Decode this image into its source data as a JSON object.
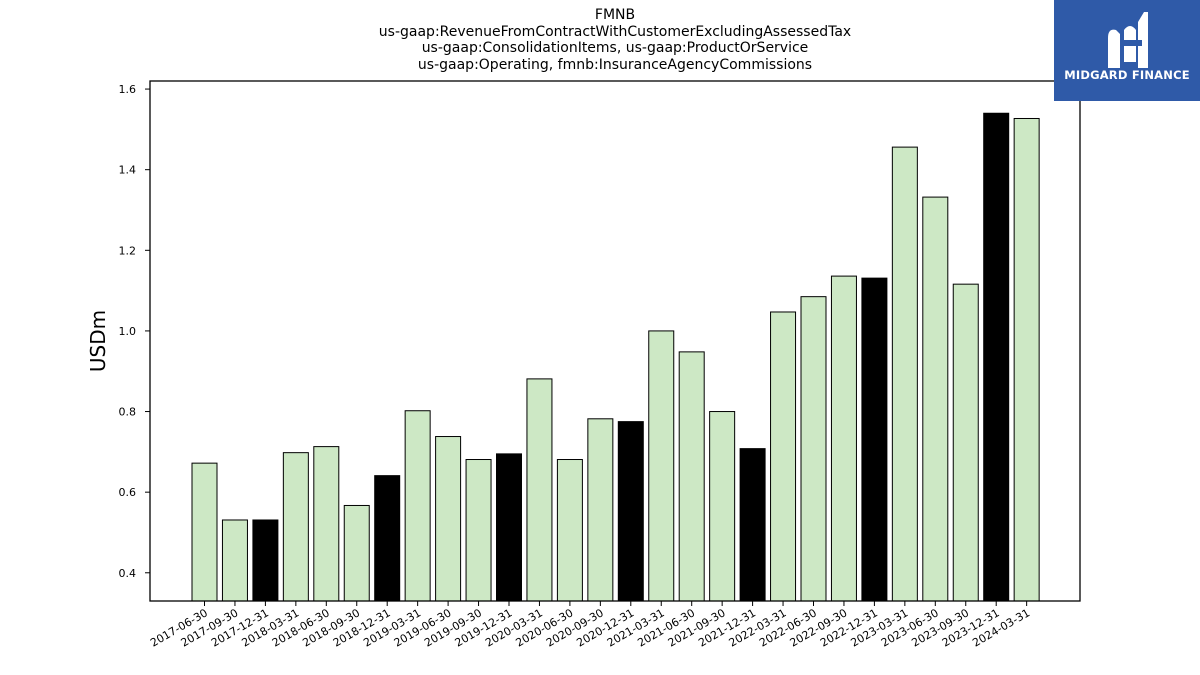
{
  "title_lines": [
    "FMNB",
    "us-gaap:RevenueFromContractWithCustomerExcludingAssessedTax",
    "us-gaap:ConsolidationItems, us-gaap:ProductOrService",
    "us-gaap:Operating, fmnb:InsuranceAgencyCommissions"
  ],
  "logo": {
    "text": "MIDGARD FINANCE",
    "icon": "midgard-m-logo-icon",
    "background": "#2f5aa8"
  },
  "colors": {
    "bar_light": "#cde8c5",
    "bar_dark": "#000000",
    "edge": "#000000"
  },
  "chart_data": {
    "type": "bar",
    "title": "FMNB",
    "xlabel": "",
    "ylabel": "USDm",
    "ylim": [
      0.33,
      1.62
    ],
    "yticks": [
      0.4,
      0.6,
      0.8,
      1.0,
      1.2,
      1.4,
      1.6
    ],
    "ytick_labels": [
      "0.4",
      "0.6",
      "0.8",
      "1.0",
      "1.2",
      "1.4",
      "1.6"
    ],
    "grid": false,
    "categories": [
      "2017-06-30",
      "2017-09-30",
      "2017-12-31",
      "2018-03-31",
      "2018-06-30",
      "2018-09-30",
      "2018-12-31",
      "2019-03-31",
      "2019-06-30",
      "2019-09-30",
      "2019-12-31",
      "2020-03-31",
      "2020-06-30",
      "2020-09-30",
      "2020-12-31",
      "2021-03-31",
      "2021-06-30",
      "2021-09-30",
      "2021-12-31",
      "2022-03-31",
      "2022-06-30",
      "2022-09-30",
      "2022-12-31",
      "2023-03-31",
      "2023-06-30",
      "2023-09-30",
      "2023-12-31",
      "2024-03-31"
    ],
    "values": [
      0.672,
      0.531,
      0.531,
      0.698,
      0.713,
      0.567,
      0.641,
      0.802,
      0.738,
      0.681,
      0.695,
      0.881,
      0.681,
      0.782,
      0.775,
      1.0,
      0.948,
      0.8,
      0.708,
      1.047,
      1.085,
      1.136,
      1.131,
      1.456,
      1.332,
      1.116,
      1.54,
      1.527
    ],
    "highlight": [
      false,
      false,
      true,
      false,
      false,
      false,
      true,
      false,
      false,
      false,
      true,
      false,
      false,
      false,
      true,
      false,
      false,
      false,
      true,
      false,
      false,
      false,
      true,
      false,
      false,
      false,
      true,
      false
    ]
  }
}
